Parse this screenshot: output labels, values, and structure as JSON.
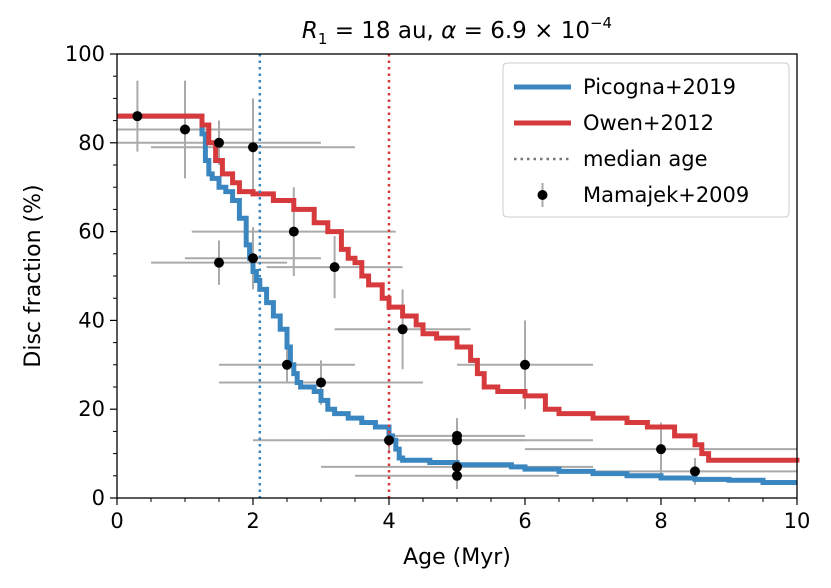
{
  "chart_data": {
    "type": "line",
    "title": "R1 = 18 au, α = 6.9 × 10^-4",
    "title_parts": {
      "r": "R",
      "r_sub": "1",
      "r_rest": " = 18 au, ",
      "alpha": "α",
      "alpha_rest": " = 6.9 × 10",
      "exp": "−4"
    },
    "xlabel": "Age (Myr)",
    "ylabel": "Disc fraction (%)",
    "xlim": [
      0,
      10
    ],
    "ylim": [
      0,
      100
    ],
    "xticks": [
      0,
      2,
      4,
      6,
      8,
      10
    ],
    "yticks": [
      0,
      20,
      40,
      60,
      80,
      100
    ],
    "grid": false,
    "legend_position": "top-right",
    "series": [
      {
        "name": "Picogna+2019",
        "type": "step-line",
        "color": "#3a86c0",
        "x": [
          0,
          0.3,
          0.6,
          0.9,
          1.0,
          1.2,
          1.25,
          1.3,
          1.35,
          1.4,
          1.5,
          1.6,
          1.7,
          1.8,
          1.9,
          1.95,
          2.0,
          2.05,
          2.1,
          2.2,
          2.3,
          2.4,
          2.5,
          2.55,
          2.6,
          2.65,
          2.7,
          2.9,
          3.0,
          3.1,
          3.2,
          3.4,
          3.6,
          3.8,
          4.0,
          4.05,
          4.1,
          4.15,
          4.2,
          4.4,
          4.6,
          5.0,
          5.5,
          5.8,
          6.0,
          6.5,
          7.0,
          7.5,
          8.0,
          8.5,
          9.0,
          9.5,
          10.0
        ],
        "y": [
          86,
          86,
          86,
          86,
          86,
          86,
          82,
          76,
          73,
          72,
          70,
          69,
          67,
          63,
          57,
          54,
          51,
          49,
          47,
          44,
          41,
          38,
          34,
          30,
          28,
          26,
          25,
          24,
          22,
          20,
          19,
          18,
          17,
          16,
          14,
          13,
          11,
          9,
          8.5,
          8.5,
          8,
          7.5,
          7.5,
          7,
          6.5,
          6,
          5.5,
          5,
          4.5,
          4.2,
          4,
          3.5,
          3.5
        ]
      },
      {
        "name": "Owen+2012",
        "type": "step-line",
        "color": "#d63a3d",
        "x": [
          0,
          1.2,
          1.25,
          1.35,
          1.45,
          1.55,
          1.7,
          1.8,
          2.0,
          2.3,
          2.6,
          2.9,
          3.1,
          3.3,
          3.4,
          3.5,
          3.6,
          3.7,
          3.9,
          4.0,
          4.2,
          4.4,
          4.5,
          4.7,
          5.0,
          5.2,
          5.3,
          5.4,
          5.6,
          6.0,
          6.3,
          6.5,
          7.0,
          7.5,
          7.8,
          8.2,
          8.5,
          8.6,
          8.7,
          9.0,
          10.0
        ],
        "y": [
          86,
          86,
          84,
          80,
          76,
          73,
          71,
          69,
          68.5,
          67,
          65,
          62,
          60,
          56,
          54,
          53,
          50,
          48,
          45,
          43,
          41,
          39,
          37,
          36,
          34,
          31,
          28,
          25,
          24,
          23,
          20,
          19,
          18,
          17,
          16,
          14,
          12,
          10,
          8.5,
          8.5,
          8
        ]
      }
    ],
    "median_ages": [
      {
        "series": "Picogna+2019",
        "x": 2.1,
        "color": "#3a86c0"
      },
      {
        "series": "Owen+2012",
        "x": 4.0,
        "color": "#d63a3d"
      }
    ],
    "median_label": "median age",
    "observations": {
      "name": "Mamajek+2009",
      "color": "#000000",
      "errorbar_color": "#aaaaaa",
      "points": [
        {
          "x": 0.3,
          "y": 86,
          "xerr": 0.3,
          "yerr": 8
        },
        {
          "x": 1.0,
          "y": 83,
          "xerr": 1.0,
          "yerr": 11
        },
        {
          "x": 1.5,
          "y": 80,
          "xerr": 1.5,
          "yerr": 5
        },
        {
          "x": 2.0,
          "y": 79,
          "xerr": 1.5,
          "yerr": 11
        },
        {
          "x": 1.5,
          "y": 53,
          "xerr": 1.0,
          "yerr": 5
        },
        {
          "x": 2.0,
          "y": 54,
          "xerr": 1.0,
          "yerr": 7
        },
        {
          "x": 2.6,
          "y": 60,
          "xerr": 1.5,
          "yerr": 10
        },
        {
          "x": 3.2,
          "y": 52,
          "xerr": 1.0,
          "yerr": 7
        },
        {
          "x": 4.2,
          "y": 38,
          "xerr": 1.0,
          "yerr": 9
        },
        {
          "x": 2.5,
          "y": 30,
          "xerr": 1.0,
          "yerr": 4
        },
        {
          "x": 3.0,
          "y": 26,
          "xerr": 1.5,
          "yerr": 5
        },
        {
          "x": 6.0,
          "y": 30,
          "xerr": 1.0,
          "yerr": 10
        },
        {
          "x": 4.0,
          "y": 13,
          "xerr": 2.0,
          "yerr": 3
        },
        {
          "x": 5.0,
          "y": 14,
          "xerr": 1.0,
          "yerr": 4
        },
        {
          "x": 5.0,
          "y": 13,
          "xerr": 2.0,
          "yerr": 3
        },
        {
          "x": 5.0,
          "y": 7,
          "xerr": 2.0,
          "yerr": 3
        },
        {
          "x": 5.0,
          "y": 5,
          "xerr": 1.5,
          "yerr": 3
        },
        {
          "x": 8.0,
          "y": 11,
          "xerr": 2.0,
          "yerr": 6
        },
        {
          "x": 8.5,
          "y": 6,
          "xerr": 1.5,
          "yerr": 3
        }
      ]
    }
  }
}
